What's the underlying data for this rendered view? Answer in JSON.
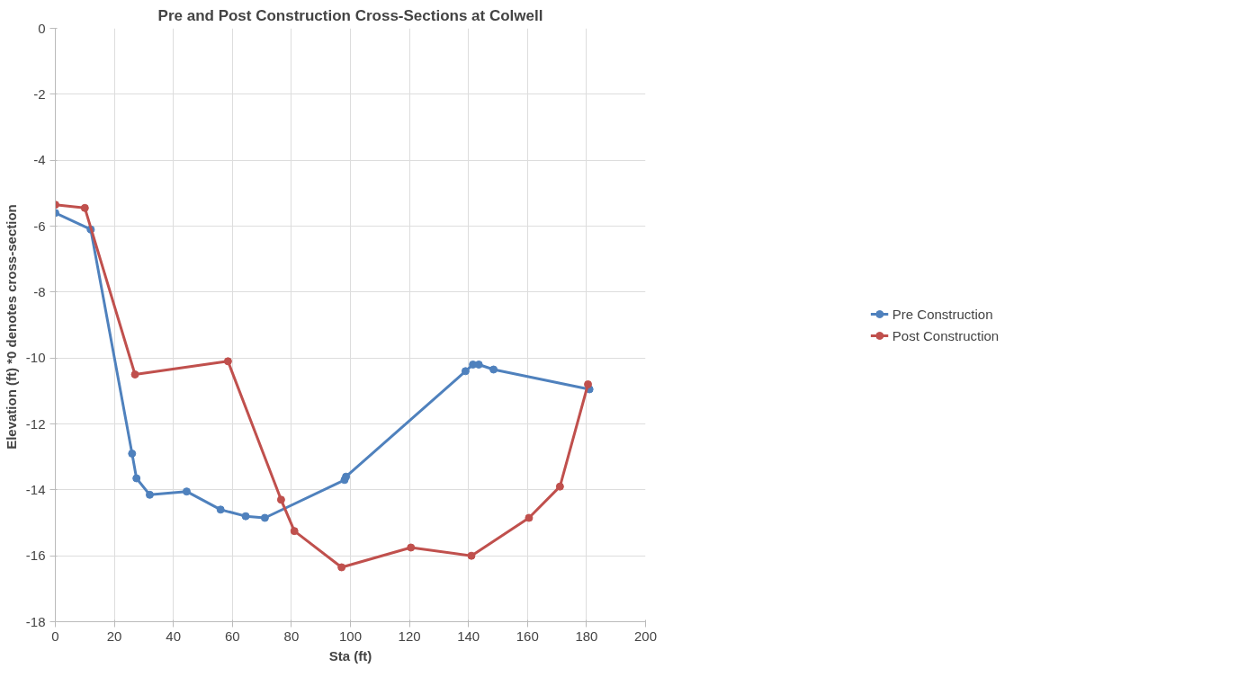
{
  "chart_data": {
    "type": "line",
    "title": "Pre and Post Construction Cross-Sections at Colwell",
    "xlabel": "Sta (ft)",
    "ylabel": "Elevation (ft)  *0 denotes cross-section",
    "xlim": [
      0,
      200
    ],
    "xticks": [
      0,
      20,
      40,
      60,
      80,
      100,
      120,
      140,
      160,
      180,
      200
    ],
    "ylim": [
      -18,
      0
    ],
    "yticks": [
      -18,
      -16,
      -14,
      -12,
      -10,
      -8,
      -6,
      -4,
      -2,
      0
    ],
    "grid": true,
    "legend": "right",
    "marker": "circle",
    "line_style": "solid",
    "series": [
      {
        "name": "Pre Construction",
        "color": "#4f81bd",
        "x": [
          0,
          12,
          26,
          27.5,
          32,
          44.5,
          56,
          64.5,
          71,
          98,
          98.5,
          139,
          141.5,
          143.5,
          148.5,
          181
        ],
        "values": [
          -5.6,
          -6.1,
          -12.9,
          -13.65,
          -14.15,
          -14.05,
          -14.6,
          -14.8,
          -14.85,
          -13.7,
          -13.6,
          -10.4,
          -10.2,
          -10.2,
          -10.35,
          -10.95
        ]
      },
      {
        "name": "Post Construction",
        "color": "#c0504d",
        "x": [
          0,
          10,
          27,
          58.5,
          76.5,
          81,
          97,
          120.5,
          141,
          160.5,
          171,
          180.5
        ],
        "values": [
          -5.35,
          -5.45,
          -10.5,
          -10.1,
          -14.3,
          -15.25,
          -16.35,
          -15.75,
          -16,
          -14.85,
          -13.9,
          -10.8
        ]
      }
    ]
  }
}
